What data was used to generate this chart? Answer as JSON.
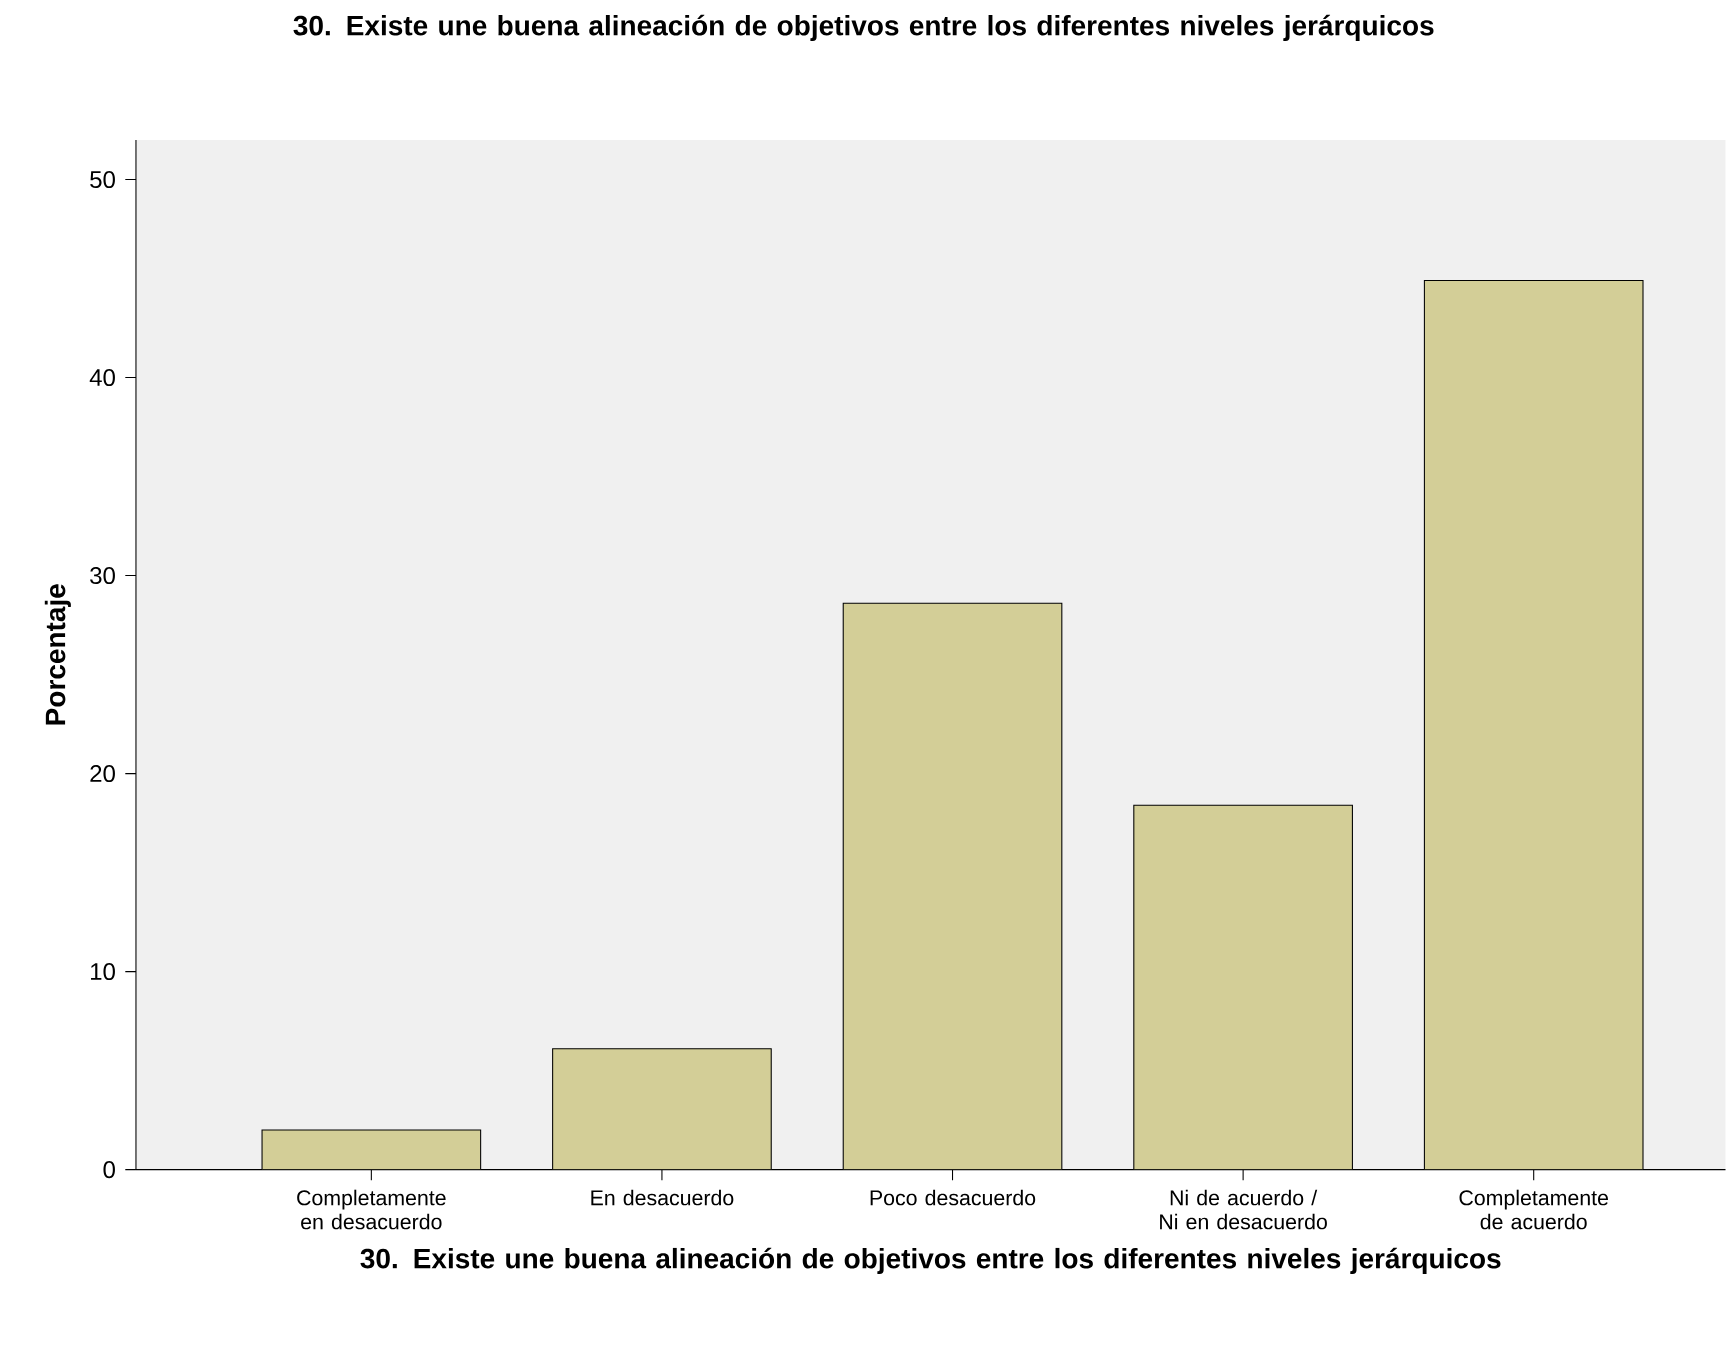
{
  "chart_data": {
    "type": "bar",
    "title": "30. Existe une buena alineación de objetivos entre los diferentes niveles jerárquicos",
    "xlabel": "30. Existe une buena alineación de objetivos entre los diferentes niveles jerárquicos",
    "ylabel": "Porcentaje",
    "categories": [
      "Completamente en desacuerdo",
      "En desacuerdo",
      "Poco desacuerdo",
      "Ni de acuerdo / Ni en desacuerdo",
      "Completamente de acuerdo"
    ],
    "values": [
      2.0,
      6.1,
      28.6,
      18.4,
      44.9
    ],
    "color": "#d3ce97",
    "ylim": [
      0,
      52
    ],
    "yticks": [
      0,
      10,
      20,
      30,
      40,
      50
    ],
    "grid": false
  }
}
